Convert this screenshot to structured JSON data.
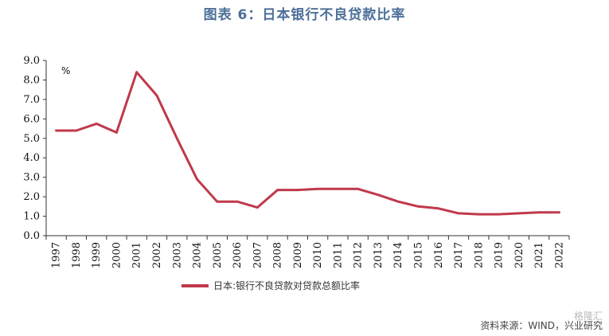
{
  "chart_data": {
    "type": "line",
    "title": "图表 6：日本银行不良贷款比率",
    "unit_label": "%",
    "x": [
      "1997",
      "1998",
      "1999",
      "2000",
      "2001",
      "2002",
      "2003",
      "2004",
      "2005",
      "2006",
      "2007",
      "2008",
      "2009",
      "2010",
      "2011",
      "2012",
      "2013",
      "2014",
      "2015",
      "2016",
      "2017",
      "2018",
      "2019",
      "2020",
      "2021",
      "2022"
    ],
    "series": [
      {
        "name": "日本:银行不良贷款对贷款总额比率",
        "color": "#c0394b",
        "values": [
          5.4,
          5.4,
          5.75,
          5.3,
          8.4,
          7.2,
          5.0,
          2.9,
          1.75,
          1.75,
          1.45,
          2.35,
          2.35,
          2.4,
          2.4,
          2.4,
          2.1,
          1.75,
          1.5,
          1.4,
          1.15,
          1.1,
          1.1,
          1.15,
          1.2,
          1.2
        ]
      }
    ],
    "ylim": [
      0,
      9
    ],
    "yticks": [
      "0.0",
      "1.0",
      "2.0",
      "3.0",
      "4.0",
      "5.0",
      "6.0",
      "7.0",
      "8.0",
      "9.0"
    ],
    "grid": false,
    "legend_position": "bottom-center"
  },
  "source_text": "资料来源：WIND，兴业研究",
  "watermark_text": "格隆汇"
}
